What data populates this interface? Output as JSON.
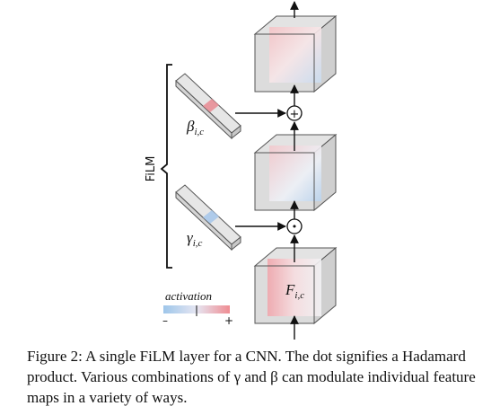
{
  "film_label": "FiLM",
  "beta_label": "βi,c",
  "beta_base": "β",
  "beta_sub": "i,c",
  "gamma_label": "γi,c",
  "gamma_base": "γ",
  "gamma_sub": "i,c",
  "feature_label": "Fi,c",
  "feature_base": "F",
  "feature_sub": "i,c",
  "plus_op": "+",
  "dot_op": "•",
  "activation": {
    "title": "activation",
    "minus": "–",
    "plus": "+",
    "colors": {
      "negative": "#9ec6ea",
      "positive": "#ef8c92"
    }
  },
  "caption": "Figure 2: A single FiLM layer for a CNN. The dot signifies a Hadamard product. Various combinations of γ and β can modulate individual feature maps in a variety of ways."
}
